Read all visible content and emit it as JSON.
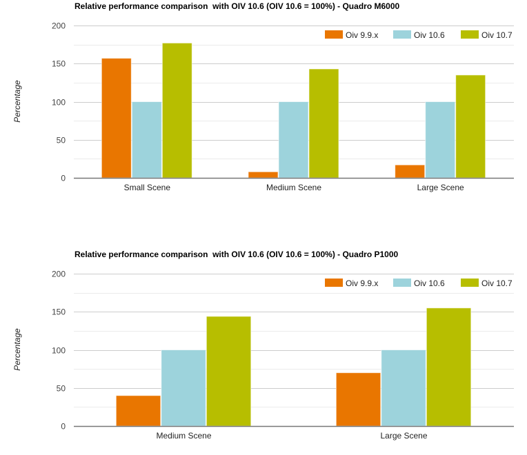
{
  "chart_data": [
    {
      "type": "bar",
      "title": "Relative performance comparison  with OIV 10.6 (OIV 10.6 = 100%) - Quadro M6000",
      "xlabel": "",
      "ylabel": "Percentage",
      "ylim": [
        0,
        200
      ],
      "yticks": [
        0,
        50,
        100,
        150,
        200
      ],
      "minor_gridlines": [
        25,
        75,
        125,
        175
      ],
      "grid": true,
      "legend_position": "top-right",
      "categories": [
        "Small Scene",
        "Medium Scene",
        "Large Scene"
      ],
      "series": [
        {
          "name": "Oiv 9.9.x",
          "color": "#E97600",
          "values": [
            157,
            8,
            17
          ]
        },
        {
          "name": "Oiv 10.6",
          "color": "#9DD3DC",
          "values": [
            100,
            100,
            100
          ]
        },
        {
          "name": "Oiv 10.7",
          "color": "#B7BE00",
          "values": [
            177,
            143,
            135
          ]
        }
      ]
    },
    {
      "type": "bar",
      "title": "Relative performance comparison  with OIV 10.6 (OIV 10.6 = 100%) - Quadro P1000",
      "xlabel": "",
      "ylabel": "Percentage",
      "ylim": [
        0,
        200
      ],
      "yticks": [
        0,
        50,
        100,
        150,
        200
      ],
      "minor_gridlines": [
        25,
        75,
        125,
        175
      ],
      "grid": true,
      "legend_position": "top-right",
      "categories": [
        "Medium Scene",
        "Large Scene"
      ],
      "series": [
        {
          "name": "Oiv 9.9.x",
          "color": "#E97600",
          "values": [
            40,
            70
          ]
        },
        {
          "name": "Oiv 10.6",
          "color": "#9DD3DC",
          "values": [
            100,
            100
          ]
        },
        {
          "name": "Oiv 10.7",
          "color": "#B7BE00",
          "values": [
            144,
            155
          ]
        }
      ]
    }
  ]
}
